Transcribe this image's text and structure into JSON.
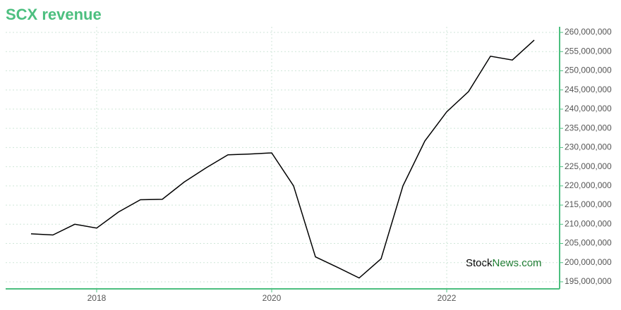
{
  "chart_data": {
    "type": "line",
    "title": "SCX revenue",
    "x": [
      2017.25,
      2017.5,
      2017.75,
      2018.0,
      2018.25,
      2018.5,
      2018.75,
      2019.0,
      2019.25,
      2019.5,
      2019.75,
      2020.0,
      2020.25,
      2020.5,
      2020.75,
      2021.0,
      2021.25,
      2021.5,
      2021.75,
      2022.0,
      2022.25,
      2022.5,
      2022.75,
      2023.0
    ],
    "values": [
      207500000,
      207200000,
      210000000,
      209000000,
      213200000,
      216400000,
      216500000,
      221000000,
      224700000,
      228100000,
      228300000,
      228600000,
      220000000,
      201500000,
      198800000,
      196000000,
      201000000,
      220000000,
      231700000,
      239300000,
      244600000,
      253800000,
      252800000,
      258000000
    ],
    "color": "#000000",
    "xlim": [
      2016.96,
      2023.29
    ],
    "xticks": [
      2018,
      2020,
      2022
    ],
    "ylim": [
      193160000,
      261470000
    ],
    "yticks": [
      {
        "value": 195000000,
        "label": "195,000,000"
      },
      {
        "value": 200000000,
        "label": "200,000,000"
      },
      {
        "value": 205000000,
        "label": "205,000,000"
      },
      {
        "value": 210000000,
        "label": "210,000,000"
      },
      {
        "value": 215000000,
        "label": "215,000,000"
      },
      {
        "value": 220000000,
        "label": "220,000,000"
      },
      {
        "value": 225000000,
        "label": "225,000,000"
      },
      {
        "value": 230000000,
        "label": "230,000,000"
      },
      {
        "value": 235000000,
        "label": "235,000,000"
      },
      {
        "value": 240000000,
        "label": "240,000,000"
      },
      {
        "value": 245000000,
        "label": "245,000,000"
      },
      {
        "value": 250000000,
        "label": "250,000,000"
      },
      {
        "value": 255000000,
        "label": "255,000,000"
      },
      {
        "value": 260000000,
        "label": "260,000,000"
      }
    ],
    "grid": true,
    "axis_color": "#4cbf7f",
    "watermark": [
      "Stock",
      "News.com"
    ]
  }
}
